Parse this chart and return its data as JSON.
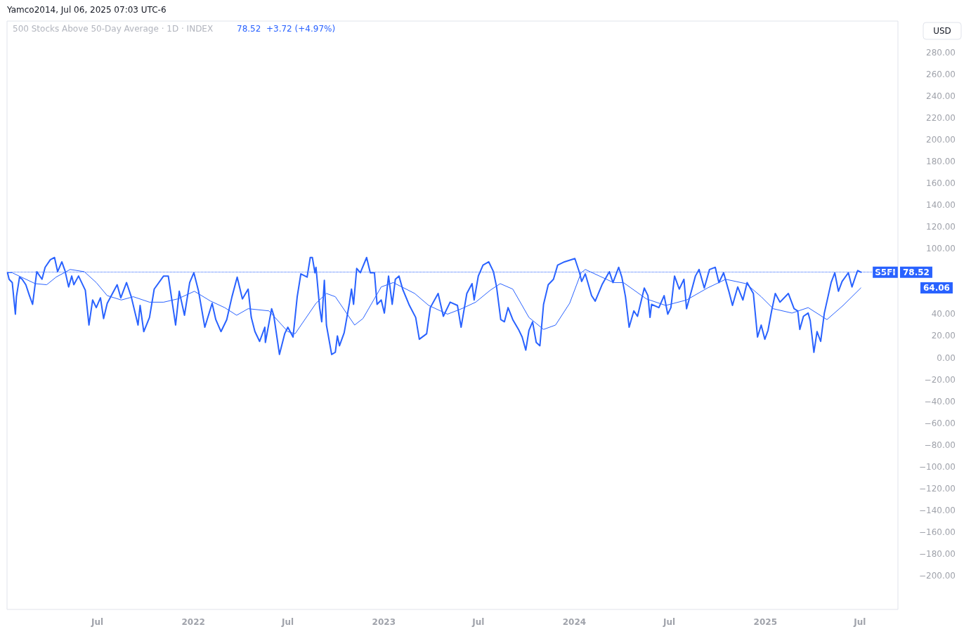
{
  "chart_data": {
    "type": "line",
    "title": "500 Stocks Above 50-Day Average · 1D · INDEX",
    "subtitle": "78.52  +3.72 (+4.97%)",
    "ylabel": "USD",
    "annotations": [
      "Yamco2014, Jul 06, 2025 07:03 UTC-6",
      "64.06"
    ],
    "legend": false,
    "marker": "none",
    "line_style": "solid",
    "xlim": [
      "2021-01-09",
      "2025-09-12"
    ],
    "xticks": [
      {
        "value": "2021-07-01",
        "label": "Jul"
      },
      {
        "value": "2022-01-01",
        "label": "2022"
      },
      {
        "value": "2022-07-01",
        "label": "Jul"
      },
      {
        "value": "2023-01-01",
        "label": "2023"
      },
      {
        "value": "2023-07-01",
        "label": "Jul"
      },
      {
        "value": "2024-01-01",
        "label": "2024"
      },
      {
        "value": "2024-07-01",
        "label": "Jul"
      },
      {
        "value": "2025-01-01",
        "label": "2025"
      },
      {
        "value": "2025-07-01",
        "label": "Jul"
      }
    ],
    "ylim": [
      -231,
      309
    ],
    "yticks": [
      {
        "value": -200,
        "label": "−200.00"
      },
      {
        "value": -180,
        "label": "−180.00"
      },
      {
        "value": -160,
        "label": "−160.00"
      },
      {
        "value": -140,
        "label": "−140.00"
      },
      {
        "value": -120,
        "label": "−120.00"
      },
      {
        "value": -100,
        "label": "−100.00"
      },
      {
        "value": -80,
        "label": "−80.00"
      },
      {
        "value": -60,
        "label": "−60.00"
      },
      {
        "value": -40,
        "label": "−40.00"
      },
      {
        "value": -20,
        "label": "−20.00"
      },
      {
        "value": 0,
        "label": "0.00"
      },
      {
        "value": 20,
        "label": "20.00"
      },
      {
        "value": 40,
        "label": "40.00"
      },
      {
        "value": 100,
        "label": "100.00"
      },
      {
        "value": 120,
        "label": "120.00"
      },
      {
        "value": 140,
        "label": "140.00"
      },
      {
        "value": 160,
        "label": "160.00"
      },
      {
        "value": 180,
        "label": "180.00"
      },
      {
        "value": 200,
        "label": "200.00"
      },
      {
        "value": 220,
        "label": "220.00"
      },
      {
        "value": 240,
        "label": "240.00"
      },
      {
        "value": 260,
        "label": "260.00"
      },
      {
        "value": 280,
        "label": "280.00"
      }
    ],
    "ref_lines": [
      {
        "axis": "y",
        "value": 78.52,
        "label": "78.52",
        "color": "#2962ff",
        "line_style": "dotted"
      }
    ],
    "series": [
      {
        "name": "S5FI",
        "color": "#2962ff",
        "x": [
          "2021-01-10",
          "2021-01-13",
          "2021-01-19",
          "2021-01-25",
          "2021-01-27",
          "2021-02-02",
          "2021-02-07",
          "2021-02-14",
          "2021-02-21",
          "2021-02-27",
          "2021-03-07",
          "2021-03-17",
          "2021-03-23",
          "2021-04-02",
          "2021-04-10",
          "2021-04-16",
          "2021-04-24",
          "2021-04-30",
          "2021-05-07",
          "2021-05-13",
          "2021-05-17",
          "2021-05-26",
          "2021-06-08",
          "2021-06-15",
          "2021-06-22",
          "2021-06-29",
          "2021-07-07",
          "2021-07-13",
          "2021-07-20",
          "2021-08-08",
          "2021-08-15",
          "2021-08-26",
          "2021-09-04",
          "2021-09-17",
          "2021-09-21",
          "2021-09-28",
          "2021-10-09",
          "2021-10-18",
          "2021-11-05",
          "2021-11-14",
          "2021-11-28",
          "2021-12-05",
          "2021-12-15",
          "2021-12-25",
          "2022-01-02",
          "2022-01-11",
          "2022-01-23",
          "2022-02-06",
          "2022-02-13",
          "2022-02-23",
          "2022-03-06",
          "2022-03-16",
          "2022-03-26",
          "2022-04-05",
          "2022-04-16",
          "2022-04-22",
          "2022-04-29",
          "2022-05-08",
          "2022-05-18",
          "2022-05-19",
          "2022-05-31",
          "2022-06-04",
          "2022-06-15",
          "2022-06-25",
          "2022-07-01",
          "2022-07-11",
          "2022-07-19",
          "2022-07-26",
          "2022-08-07",
          "2022-08-13",
          "2022-08-17",
          "2022-08-22",
          "2022-08-24",
          "2022-08-31",
          "2022-09-04",
          "2022-09-09",
          "2022-09-13",
          "2022-09-23",
          "2022-09-30",
          "2022-10-04",
          "2022-10-08",
          "2022-10-17",
          "2022-10-27",
          "2022-10-31",
          "2022-11-04",
          "2022-11-10",
          "2022-11-17",
          "2022-11-29",
          "2022-12-06",
          "2022-12-14",
          "2022-12-19",
          "2022-12-27",
          "2023-01-02",
          "2023-01-10",
          "2023-01-17",
          "2023-01-23",
          "2023-01-30",
          "2023-02-06",
          "2023-02-19",
          "2023-03-03",
          "2023-03-10",
          "2023-03-24",
          "2023-03-31",
          "2023-04-15",
          "2023-04-25",
          "2023-05-08",
          "2023-05-22",
          "2023-05-29",
          "2023-06-09",
          "2023-06-19",
          "2023-06-23",
          "2023-07-01",
          "2023-07-10",
          "2023-07-21",
          "2023-07-30",
          "2023-08-05",
          "2023-08-13",
          "2023-08-20",
          "2023-08-27",
          "2023-09-05",
          "2023-09-16",
          "2023-09-23",
          "2023-09-30",
          "2023-10-06",
          "2023-10-13",
          "2023-10-20",
          "2023-10-27",
          "2023-11-03",
          "2023-11-12",
          "2023-11-22",
          "2023-11-30",
          "2023-12-13",
          "2024-01-02",
          "2024-01-11",
          "2024-01-15",
          "2024-01-22",
          "2024-02-03",
          "2024-02-10",
          "2024-02-23",
          "2024-03-08",
          "2024-03-15",
          "2024-03-26",
          "2024-04-01",
          "2024-04-08",
          "2024-04-15",
          "2024-04-24",
          "2024-05-01",
          "2024-05-14",
          "2024-05-21",
          "2024-05-25",
          "2024-05-28",
          "2024-06-11",
          "2024-06-21",
          "2024-06-28",
          "2024-07-04",
          "2024-07-11",
          "2024-07-20",
          "2024-07-29",
          "2024-08-03",
          "2024-08-11",
          "2024-08-20",
          "2024-08-27",
          "2024-09-06",
          "2024-09-16",
          "2024-09-27",
          "2024-10-04",
          "2024-10-13",
          "2024-10-23",
          "2024-10-30",
          "2024-11-09",
          "2024-11-19",
          "2024-11-27",
          "2024-12-09",
          "2024-12-17",
          "2024-12-24",
          "2024-12-31",
          "2025-01-06",
          "2025-01-13",
          "2025-01-20",
          "2025-01-29",
          "2025-02-14",
          "2025-02-25",
          "2025-03-04",
          "2025-03-08",
          "2025-03-15",
          "2025-03-24",
          "2025-03-28",
          "2025-04-04",
          "2025-04-10",
          "2025-04-17",
          "2025-04-24",
          "2025-05-01",
          "2025-05-07",
          "2025-05-14",
          "2025-05-21",
          "2025-05-28",
          "2025-06-09",
          "2025-06-16",
          "2025-06-23",
          "2025-06-27",
          "2025-07-03"
        ],
        "values": [
          78,
          72,
          69,
          40,
          56,
          74,
          72,
          67,
          57,
          49,
          79,
          72,
          83,
          90,
          92,
          79,
          88,
          80,
          65,
          75,
          67,
          75,
          62,
          30,
          53,
          46,
          55,
          36,
          50,
          67,
          55,
          69,
          56,
          30,
          48,
          24,
          37,
          63,
          75,
          75,
          30,
          61,
          39,
          69,
          78,
          61,
          28,
          50,
          35,
          24,
          35,
          56,
          74,
          54,
          63,
          37,
          24,
          15,
          28,
          14,
          45,
          39,
          3,
          22,
          28,
          19,
          56,
          77,
          74,
          92,
          92,
          78,
          83,
          46,
          33,
          71,
          30,
          3,
          5,
          20,
          11,
          23,
          50,
          63,
          49,
          82,
          78,
          92,
          78,
          78,
          49,
          53,
          41,
          75,
          49,
          72,
          75,
          63,
          48,
          37,
          17,
          22,
          46,
          59,
          38,
          51,
          48,
          28,
          59,
          68,
          53,
          75,
          85,
          88,
          79,
          65,
          35,
          33,
          46,
          35,
          26,
          19,
          7,
          25,
          33,
          14,
          11,
          49,
          67,
          72,
          85,
          88,
          91,
          78,
          70,
          77,
          57,
          52,
          67,
          79,
          69,
          83,
          74,
          56,
          28,
          43,
          38,
          64,
          57,
          37,
          49,
          46,
          57,
          40,
          46,
          75,
          63,
          72,
          45,
          59,
          75,
          81,
          64,
          81,
          83,
          69,
          78,
          61,
          48,
          65,
          53,
          69,
          59,
          19,
          30,
          17,
          25,
          43,
          59,
          51,
          59,
          45,
          43,
          26,
          38,
          41,
          34,
          5,
          24,
          15,
          41,
          56,
          69,
          78,
          61,
          70,
          78,
          65,
          75,
          80,
          78.52
        ]
      },
      {
        "color": "#2962ff",
        "x": [
          "2021-01-11",
          "2021-01-19",
          "2021-02-01",
          "2021-03-04",
          "2021-03-26",
          "2021-04-13",
          "2021-05-10",
          "2021-06-06",
          "2021-06-29",
          "2021-07-20",
          "2021-08-16",
          "2021-09-08",
          "2021-10-09",
          "2021-11-05",
          "2021-12-02",
          "2022-01-03",
          "2022-02-03",
          "2022-03-02",
          "2022-03-25",
          "2022-04-16",
          "2022-05-26",
          "2022-07-01",
          "2022-07-15",
          "2022-08-24",
          "2022-09-13",
          "2022-09-30",
          "2022-11-06",
          "2022-11-22",
          "2022-12-27",
          "2023-01-19",
          "2023-03-01",
          "2023-03-28",
          "2023-05-03",
          "2023-05-30",
          "2023-06-26",
          "2023-07-24",
          "2023-08-12",
          "2023-09-05",
          "2023-10-06",
          "2023-11-03",
          "2023-11-26",
          "2023-12-23",
          "2024-01-14",
          "2024-01-22",
          "2024-02-18",
          "2024-03-16",
          "2024-04-04",
          "2024-05-18",
          "2024-06-24",
          "2024-08-03",
          "2024-09-12",
          "2024-10-17",
          "2024-11-25",
          "2024-12-24",
          "2025-01-16",
          "2025-02-21",
          "2025-03-24",
          "2025-04-29",
          "2025-05-30",
          "2025-07-03"
        ],
        "values": [
          78,
          78,
          75,
          68,
          67,
          74,
          81,
          79,
          69,
          57,
          53,
          56,
          51,
          51,
          54,
          61,
          52,
          46,
          39,
          45,
          43,
          24,
          22,
          50,
          59,
          56,
          30,
          36,
          65,
          69,
          59,
          48,
          40,
          45,
          51,
          62,
          68,
          63,
          37,
          26,
          30,
          50,
          78,
          81,
          75,
          69,
          69,
          54,
          48,
          53,
          64,
          72,
          68,
          56,
          45,
          41,
          46,
          35,
          48,
          64.06
        ]
      }
    ]
  }
}
